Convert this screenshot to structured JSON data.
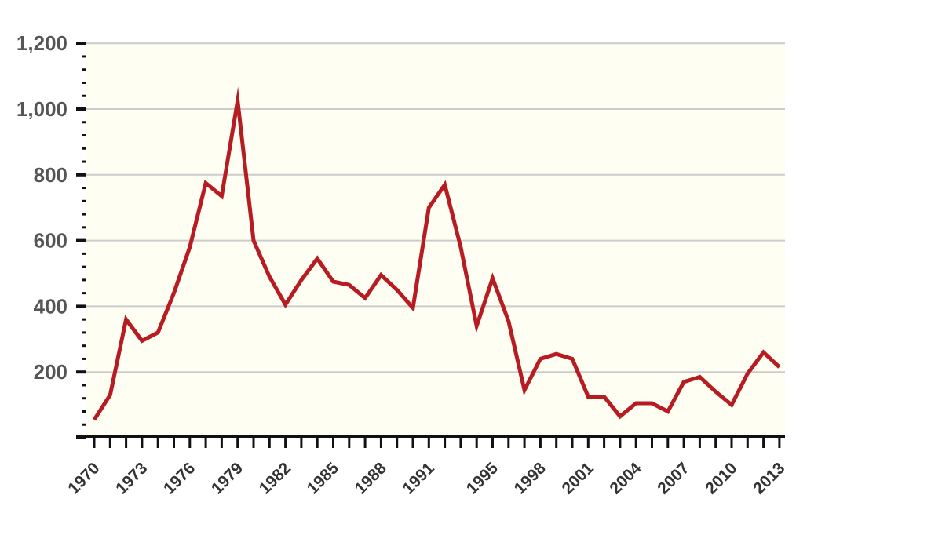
{
  "chart_data": {
    "type": "line",
    "title": "",
    "xlabel": "",
    "ylabel": "",
    "x": [
      1970,
      1971,
      1972,
      1973,
      1974,
      1975,
      1976,
      1977,
      1978,
      1979,
      1980,
      1981,
      1982,
      1983,
      1984,
      1985,
      1986,
      1987,
      1988,
      1989,
      1990,
      1991,
      1992,
      1993,
      1994,
      1995,
      1996,
      1997,
      1998,
      1999,
      2000,
      2001,
      2002,
      2003,
      2004,
      2005,
      2006,
      2007,
      2008,
      2009,
      2010,
      2011,
      2012,
      2013
    ],
    "series": [
      {
        "name": "",
        "color": "#b71c22",
        "values": [
          55,
          130,
          360,
          295,
          320,
          440,
          580,
          775,
          735,
          1025,
          600,
          490,
          405,
          480,
          545,
          475,
          465,
          425,
          495,
          450,
          395,
          700,
          770,
          580,
          340,
          485,
          355,
          145,
          240,
          255,
          240,
          125,
          125,
          65,
          105,
          105,
          80,
          170,
          185,
          140,
          100,
          195,
          260,
          215
        ]
      }
    ],
    "ylim": [
      0,
      1200
    ],
    "yticks": [
      200,
      400,
      600,
      800,
      1000,
      1200
    ],
    "ytick_labels": [
      "200",
      "400",
      "600",
      "800",
      "1,000",
      "1,200"
    ],
    "xtick_labels": [
      "1970",
      "1973",
      "1976",
      "1979",
      "1982",
      "1985",
      "1988",
      "1991",
      "1995",
      "1998",
      "2001",
      "2004",
      "2007",
      "2010",
      "2013"
    ],
    "grid": true,
    "background": "#fefef2",
    "gridline_color": "#cccccc"
  }
}
